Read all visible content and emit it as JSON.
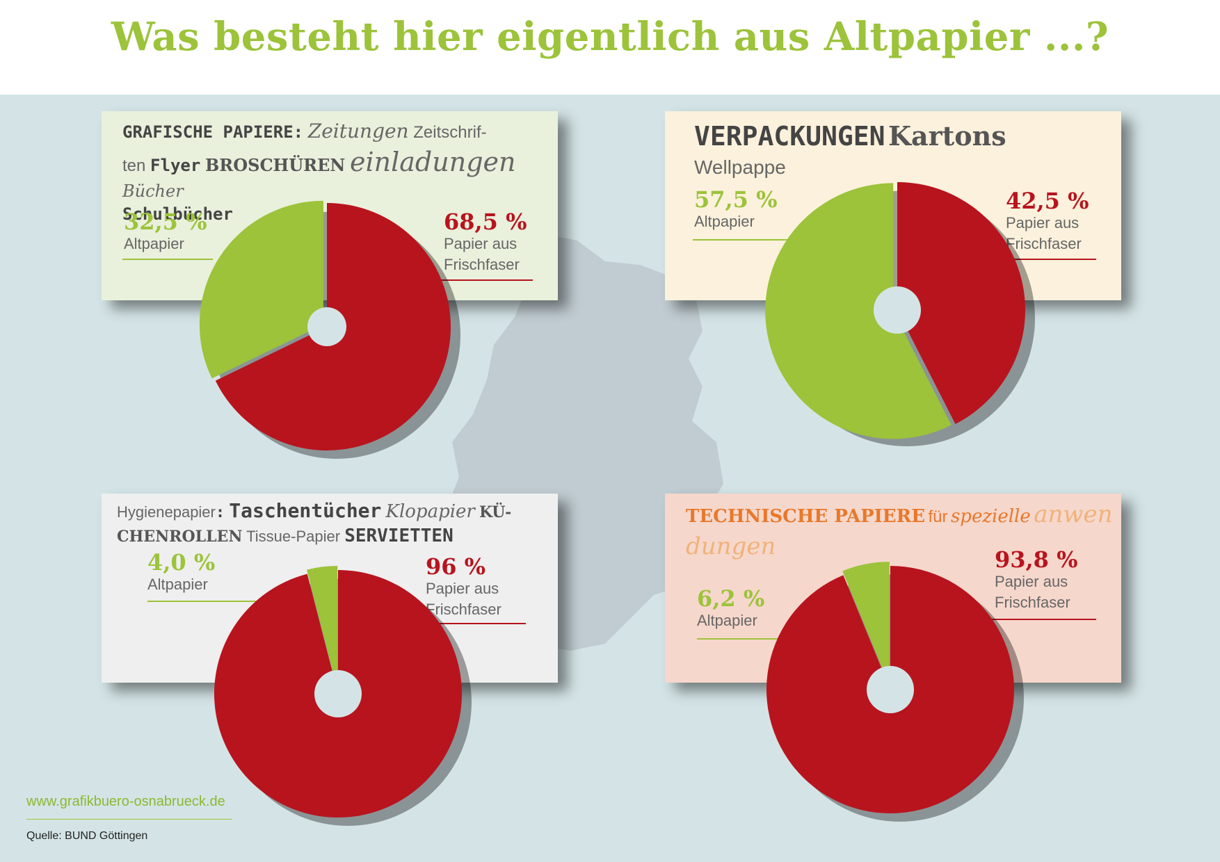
{
  "title": "Was besteht hier eigentlich aus Altpapier ...?",
  "colors": {
    "green": "#9cc33a",
    "red": "#b8141e",
    "background": "#d4e4e6"
  },
  "footer": {
    "url": "www.grafikbuero-osnabrueck.de",
    "source": "Quelle: BUND Göttingen"
  },
  "cards": [
    {
      "heading": {
        "grafische": "GRAFISCHE PAPIERE:",
        "zeitungen": "Zeitungen",
        "zeitschrif": "Zeitschrif-",
        "ten": "ten",
        "flyer": "Flyer",
        "broschueren": "BROSCHÜREN",
        "einladungen": "einladungen",
        "buecher": "Bücher",
        "schulbuecher": "Schulbücher"
      }
    },
    {
      "heading": {
        "verpackungen": "VERPACKUNGEN",
        "kartons": "Kartons",
        "wellpappe": "Wellpappe"
      }
    },
    {
      "heading": {
        "hygienepapier": "Hygienepapier",
        "colon": ":",
        "taschentuecher": "Taschentücher",
        "klopapier": "Klopapier",
        "kue": "KÜ-",
        "chenrollen": "CHENROLLEN",
        "tissue": "Tissue-Papier",
        "servietten": "SERVIETTEN"
      }
    },
    {
      "heading": {
        "technische": "TECHNISCHE PAPIERE",
        "fuer": "für",
        "spezielle": "spezielle",
        "anwen": "anwen",
        "dungen": "dungen"
      }
    }
  ],
  "chart_data": [
    {
      "type": "pie",
      "slices": [
        {
          "label_value": "32,5 %",
          "label": "Altpapier",
          "value": 32.5,
          "color": "#9cc33a"
        },
        {
          "label_value": "68,5 %",
          "label": "Papier aus Frischfaser",
          "value": 68.5,
          "color": "#b8141e"
        }
      ]
    },
    {
      "type": "pie",
      "slices": [
        {
          "label_value": "57,5 %",
          "label": "Altpapier",
          "value": 57.5,
          "color": "#9cc33a"
        },
        {
          "label_value": "42,5 %",
          "label": "Papier aus Frischfaser",
          "value": 42.5,
          "color": "#b8141e"
        }
      ]
    },
    {
      "type": "pie",
      "slices": [
        {
          "label_value": "4,0 %",
          "label": "Altpapier",
          "value": 4.0,
          "color": "#9cc33a"
        },
        {
          "label_value": "96 %",
          "label": "Papier aus Frischfaser",
          "value": 96,
          "color": "#b8141e"
        }
      ]
    },
    {
      "type": "pie",
      "slices": [
        {
          "label_value": "6,2 %",
          "label": "Altpapier",
          "value": 6.2,
          "color": "#9cc33a"
        },
        {
          "label_value": "93,8 %",
          "label": "Papier aus Frischfaser",
          "value": 93.8,
          "color": "#b8141e"
        }
      ]
    }
  ]
}
